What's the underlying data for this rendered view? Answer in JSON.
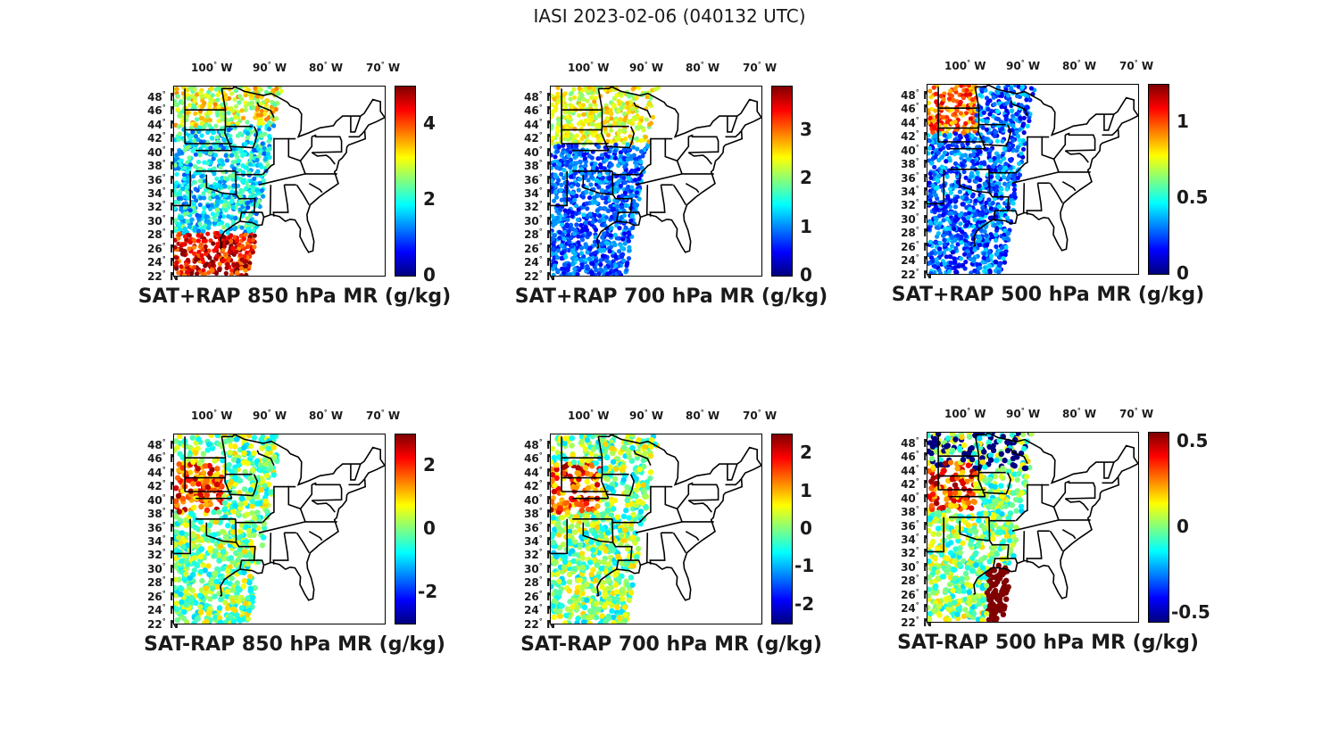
{
  "figure": {
    "title": "IASI 2023-02-06 (040132 UTC)"
  },
  "axes": {
    "lon_ticks": [
      {
        "value": "100",
        "deg": "°",
        "hem": "W"
      },
      {
        "value": "90",
        "deg": "°",
        "hem": "W"
      },
      {
        "value": "80",
        "deg": "°",
        "hem": "W"
      },
      {
        "value": "70",
        "deg": "°",
        "hem": "W"
      }
    ],
    "lat_ticks": [
      {
        "value": "48",
        "deg": "°",
        "hem": "N"
      },
      {
        "value": "46",
        "deg": "°",
        "hem": "N"
      },
      {
        "value": "44",
        "deg": "°",
        "hem": "N"
      },
      {
        "value": "42",
        "deg": "°",
        "hem": "N"
      },
      {
        "value": "40",
        "deg": "°",
        "hem": "N"
      },
      {
        "value": "38",
        "deg": "°",
        "hem": "N"
      },
      {
        "value": "36",
        "deg": "°",
        "hem": "N"
      },
      {
        "value": "34",
        "deg": "°",
        "hem": "N"
      },
      {
        "value": "32",
        "deg": "°",
        "hem": "N"
      },
      {
        "value": "30",
        "deg": "°",
        "hem": "N"
      },
      {
        "value": "28",
        "deg": "°",
        "hem": "N"
      },
      {
        "value": "26",
        "deg": "°",
        "hem": "N"
      },
      {
        "value": "24",
        "deg": "°",
        "hem": "N"
      },
      {
        "value": "22",
        "deg": "°",
        "hem": "N"
      }
    ]
  },
  "panels": [
    {
      "label": "SAT+RAP 850 hPa MR (g/kg)",
      "cbar_ticks": [
        "4",
        "2",
        "0"
      ],
      "cbar_values": [
        4,
        2,
        0
      ],
      "cbar_range": [
        0,
        5
      ],
      "kind": "total",
      "level": 850
    },
    {
      "label": "SAT+RAP 700 hPa MR (g/kg)",
      "cbar_ticks": [
        "3",
        "2",
        "1",
        "0"
      ],
      "cbar_values": [
        3,
        2,
        1,
        0
      ],
      "cbar_range": [
        0,
        3.9
      ],
      "kind": "total",
      "level": 700
    },
    {
      "label": "SAT+RAP 500 hPa MR (g/kg)",
      "cbar_ticks": [
        "1",
        "0.5",
        "0"
      ],
      "cbar_values": [
        1,
        0.5,
        0
      ],
      "cbar_range": [
        0,
        1.25
      ],
      "kind": "total",
      "level": 500
    },
    {
      "label": "SAT-RAP 850 hPa MR (g/kg)",
      "cbar_ticks": [
        "2",
        "0",
        "-2"
      ],
      "cbar_values": [
        2,
        0,
        -2
      ],
      "cbar_range": [
        -3,
        3
      ],
      "kind": "diff",
      "level": 850
    },
    {
      "label": "SAT-RAP 700 hPa MR (g/kg)",
      "cbar_ticks": [
        "2",
        "1",
        "0",
        "-1",
        "-2"
      ],
      "cbar_values": [
        2,
        1,
        0,
        -1,
        -2
      ],
      "cbar_range": [
        -2.5,
        2.5
      ],
      "kind": "diff",
      "level": 700
    },
    {
      "label": "SAT-RAP 500 hPa MR (g/kg)",
      "cbar_ticks": [
        "0.5",
        "0",
        "-0.5"
      ],
      "cbar_values": [
        0.5,
        0,
        -0.5
      ],
      "cbar_range": [
        -0.55,
        0.55
      ],
      "kind": "diff",
      "level": 500
    }
  ],
  "colors": {
    "jet": [
      "#00007f",
      "#0000ff",
      "#007fff",
      "#00ffff",
      "#7fff7f",
      "#ffff00",
      "#ff7f00",
      "#ff0000",
      "#7f0000"
    ],
    "border": "#000000"
  }
}
